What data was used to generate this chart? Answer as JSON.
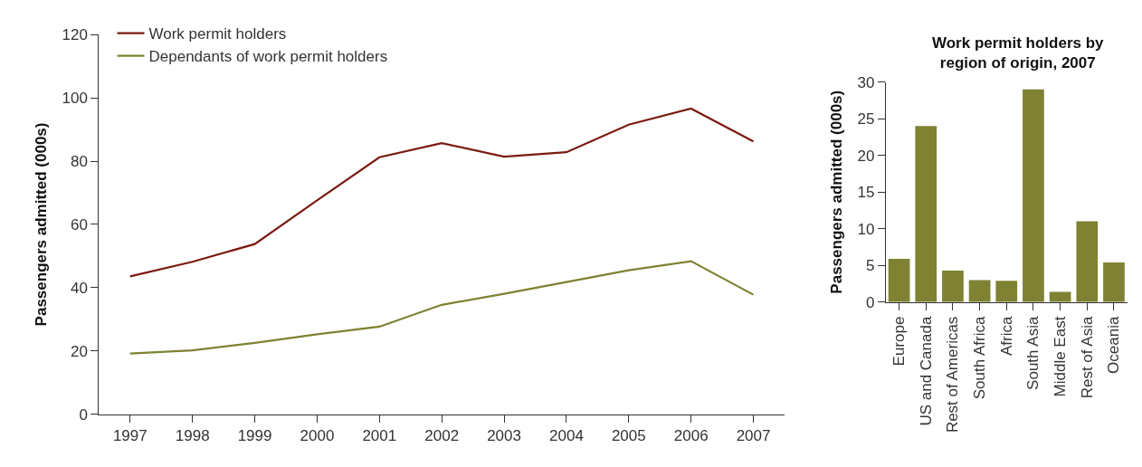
{
  "chart_data": [
    {
      "type": "line",
      "ylabel": "Passengers admitted (000s)",
      "categories": [
        "1997",
        "1998",
        "1999",
        "2000",
        "2001",
        "2002",
        "2003",
        "2004",
        "2005",
        "2006",
        "2007"
      ],
      "ylim": [
        0,
        120
      ],
      "yticks": [
        0,
        20,
        40,
        60,
        80,
        100,
        120
      ],
      "legend": "top left",
      "series": [
        {
          "name": "Work permit holders",
          "color": "#7b1a10",
          "values": [
            43.6,
            48.2,
            53.8,
            67.6,
            81.2,
            85.7,
            81.4,
            82.8,
            91.5,
            96.6,
            86.2
          ]
        },
        {
          "name": "Dependants of work permit holders",
          "color": "#7e8232",
          "values": [
            19.2,
            20.2,
            22.6,
            25.3,
            27.7,
            34.6,
            38.1,
            41.8,
            45.5,
            48.4,
            37.8
          ]
        }
      ]
    },
    {
      "type": "bar",
      "title": "Work permit holders by region of origin, 2007",
      "ylabel": "Passengers admitted (000s)",
      "categories": [
        "Europe",
        "US and Canada",
        "Rest of Americas",
        "South Africa",
        "Africa",
        "South Asia",
        "Middle East",
        "Rest of Asia",
        "Oceania"
      ],
      "ylim": [
        0,
        30
      ],
      "yticks": [
        0,
        5,
        10,
        15,
        20,
        25,
        30
      ],
      "legend": false,
      "series": [
        {
          "color": "#7e8232",
          "values": [
            5.9,
            24.0,
            4.3,
            3.0,
            2.9,
            29.0,
            1.4,
            11.0,
            5.4
          ]
        }
      ]
    }
  ]
}
